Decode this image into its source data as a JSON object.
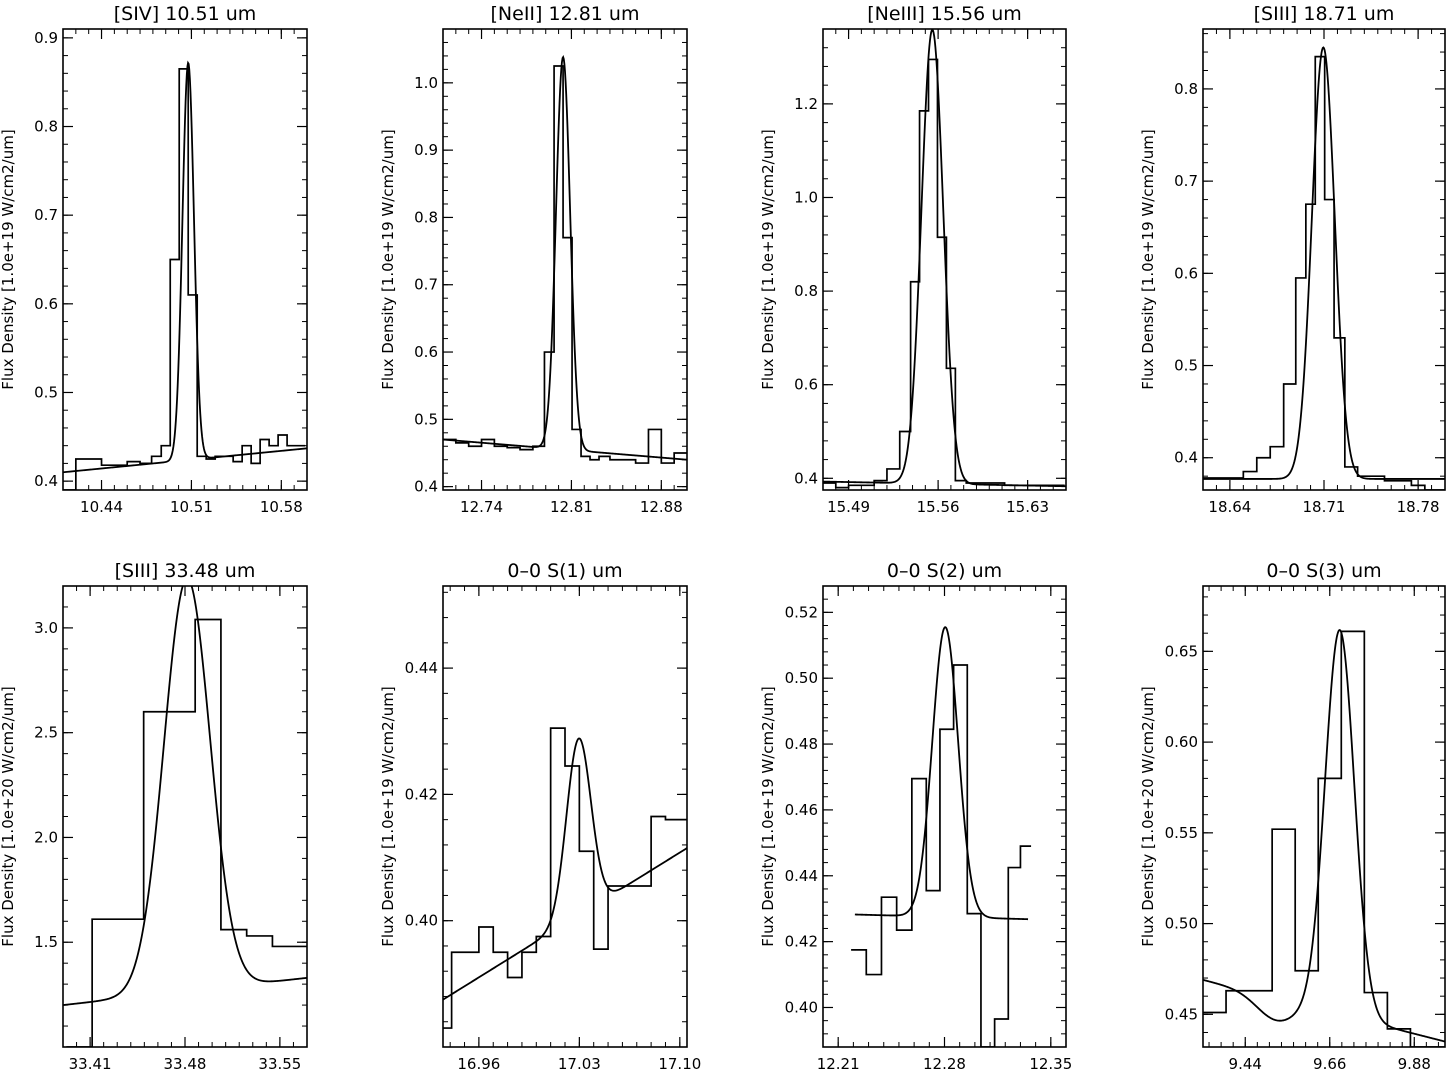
{
  "figure": {
    "description_free": true,
    "line_color": "#000000",
    "background": "#ffffff"
  },
  "chart_data": [
    {
      "type": "line",
      "title": "[SIV]   10.51  um",
      "ylabel": "Flux Density [1.0e+19 W/cm2/um]",
      "xlabel": "",
      "xlim": [
        10.41,
        10.6
      ],
      "ylim": [
        0.39,
        0.91
      ],
      "xticks": [
        10.44,
        10.51,
        10.58
      ],
      "xtick_labels": [
        "10.44",
        "10.51",
        "10.58"
      ],
      "yticks": [
        0.4,
        0.5,
        0.6,
        0.7,
        0.8,
        0.9
      ],
      "ytick_labels": [
        "0.4",
        "0.5",
        "0.6",
        "0.7",
        "0.8",
        "0.9"
      ],
      "series": [
        {
          "name": "observed",
          "kind": "step",
          "x": [
            10.415,
            10.425,
            10.435,
            10.445,
            10.455,
            10.465,
            10.475,
            10.483,
            10.49,
            10.497,
            10.504,
            10.511,
            10.518,
            10.525,
            10.532,
            10.539,
            10.546,
            10.553,
            10.56,
            10.567,
            10.574,
            10.581,
            10.588,
            10.595
          ],
          "values": [
            0.39,
            0.425,
            0.425,
            0.418,
            0.418,
            0.422,
            0.42,
            0.428,
            0.44,
            0.65,
            0.865,
            0.61,
            0.428,
            0.425,
            0.428,
            0.428,
            0.422,
            0.44,
            0.42,
            0.447,
            0.44,
            0.452,
            0.44,
            0.44
          ]
        },
        {
          "name": "fit",
          "kind": "gaussian",
          "center": 10.5075,
          "sigma": 0.0045,
          "amplitude": 0.448,
          "baseline_at_xmin": 0.41,
          "baseline_at_xmax": 0.437
        }
      ]
    },
    {
      "type": "line",
      "title": "[NeII]  12.81  um",
      "ylabel": "Flux Density [1.0e+19 W/cm2/um]",
      "xlabel": "",
      "xlim": [
        12.71,
        12.9
      ],
      "ylim": [
        0.395,
        1.08
      ],
      "xticks": [
        12.74,
        12.81,
        12.88
      ],
      "xtick_labels": [
        "12.74",
        "12.81",
        "12.88"
      ],
      "yticks": [
        0.4,
        0.5,
        0.6,
        0.7,
        0.8,
        0.9,
        1.0
      ],
      "ytick_labels": [
        "0.4",
        "0.5",
        "0.6",
        "0.7",
        "0.8",
        "0.9",
        "1.0"
      ],
      "series": [
        {
          "name": "observed",
          "kind": "step",
          "x": [
            12.715,
            12.725,
            12.735,
            12.745,
            12.755,
            12.765,
            12.775,
            12.785,
            12.793,
            12.8,
            12.807,
            12.814,
            12.821,
            12.828,
            12.835,
            12.845,
            12.855,
            12.865,
            12.875,
            12.885,
            12.895
          ],
          "values": [
            0.47,
            0.465,
            0.46,
            0.47,
            0.46,
            0.458,
            0.455,
            0.46,
            0.6,
            1.025,
            0.77,
            0.485,
            0.445,
            0.44,
            0.445,
            0.44,
            0.44,
            0.435,
            0.485,
            0.435,
            0.45
          ]
        },
        {
          "name": "fit",
          "kind": "gaussian",
          "center": 12.8035,
          "sigma": 0.0055,
          "amplitude": 0.583,
          "baseline_at_xmin": 0.47,
          "baseline_at_xmax": 0.44
        }
      ]
    },
    {
      "type": "line",
      "title": "[NeIII]  15.56  um",
      "ylabel": "Flux Density [1.0e+19 W/cm2/um]",
      "xlabel": "",
      "xlim": [
        15.47,
        15.66
      ],
      "ylim": [
        0.375,
        1.36
      ],
      "xticks": [
        15.49,
        15.56,
        15.63
      ],
      "xtick_labels": [
        "15.49",
        "15.56",
        "15.63"
      ],
      "yticks": [
        0.4,
        0.6,
        0.8,
        1.0,
        1.2
      ],
      "ytick_labels": [
        "0.4",
        "0.6",
        "0.8",
        "1.0",
        "1.2"
      ],
      "series": [
        {
          "name": "observed",
          "kind": "step",
          "x": [
            15.475,
            15.485,
            15.495,
            15.505,
            15.515,
            15.525,
            15.535,
            15.542,
            15.549,
            15.556,
            15.563,
            15.57,
            15.577,
            15.587,
            15.597,
            15.607,
            15.617,
            15.627,
            15.637,
            15.647,
            15.655
          ],
          "values": [
            0.39,
            0.38,
            0.385,
            0.385,
            0.395,
            0.42,
            0.5,
            0.82,
            1.185,
            1.295,
            0.915,
            0.635,
            0.395,
            0.39,
            0.39,
            0.39,
            0.385,
            0.385,
            0.385,
            0.385,
            0.385
          ]
        },
        {
          "name": "fit",
          "kind": "gaussian",
          "center": 15.5555,
          "sigma": 0.0085,
          "amplitude": 0.97,
          "baseline_at_xmin": 0.393,
          "baseline_at_xmax": 0.383
        }
      ]
    },
    {
      "type": "line",
      "title": "[SIII]   18.71  um",
      "ylabel": "Flux Density [1.0e+19 W/cm2/um]",
      "xlabel": "",
      "xlim": [
        18.62,
        18.8
      ],
      "ylim": [
        0.365,
        0.865
      ],
      "xticks": [
        18.64,
        18.71,
        18.78
      ],
      "xtick_labels": [
        "18.64",
        "18.71",
        "18.78"
      ],
      "yticks": [
        0.4,
        0.5,
        0.6,
        0.7,
        0.8
      ],
      "ytick_labels": [
        "0.4",
        "0.5",
        "0.6",
        "0.7",
        "0.8"
      ],
      "series": [
        {
          "name": "observed",
          "kind": "step",
          "x": [
            18.625,
            18.635,
            18.645,
            18.655,
            18.665,
            18.675,
            18.685,
            18.693,
            18.7,
            18.707,
            18.714,
            18.721,
            18.73,
            18.74,
            18.75,
            18.76,
            18.77,
            18.78,
            18.79,
            18.797
          ],
          "values": [
            0.378,
            0.378,
            0.378,
            0.385,
            0.4,
            0.412,
            0.48,
            0.595,
            0.675,
            0.835,
            0.68,
            0.53,
            0.39,
            0.38,
            0.38,
            0.375,
            0.375,
            0.37,
            0.365,
            0.365
          ]
        },
        {
          "name": "fit",
          "kind": "gaussian",
          "center": 18.7095,
          "sigma": 0.0085,
          "amplitude": 0.468,
          "baseline_at_xmin": 0.377,
          "baseline_at_xmax": 0.377
        }
      ]
    },
    {
      "type": "line",
      "title": "[SIII] 33.48   um",
      "ylabel": "Flux Density [1.0e+20 W/cm2/um]",
      "xlabel": "",
      "xlim": [
        33.39,
        33.57
      ],
      "ylim": [
        1.0,
        3.2
      ],
      "xticks": [
        33.41,
        33.48,
        33.55
      ],
      "xtick_labels": [
        "33.41",
        "33.48",
        "33.55"
      ],
      "yticks": [
        1.5,
        2.0,
        2.5,
        3.0
      ],
      "ytick_labels": [
        "1.5",
        "2.0",
        "2.5",
        "3.0"
      ],
      "series": [
        {
          "name": "observed",
          "kind": "step",
          "x": [
            33.402,
            33.421,
            33.44,
            33.459,
            33.478,
            33.497,
            33.516,
            33.535,
            33.554,
            33.566
          ],
          "values": [
            1.0,
            1.61,
            1.61,
            2.6,
            2.6,
            3.04,
            1.56,
            1.53,
            1.48,
            1.48
          ]
        },
        {
          "name": "fit",
          "kind": "gaussian",
          "center": 33.4815,
          "sigma": 0.017,
          "amplitude": 1.97,
          "baseline_at_xmin": 1.2,
          "baseline_at_xmax": 1.33
        }
      ]
    },
    {
      "type": "line",
      "title": "0–0 S(1)     um",
      "ylabel": "Flux Density [1.0e+19 W/cm2/um]",
      "xlabel": "",
      "xlim": [
        16.935,
        17.105
      ],
      "ylim": [
        0.38,
        0.453
      ],
      "xticks": [
        16.96,
        17.03,
        17.1
      ],
      "xtick_labels": [
        "16.96",
        "17.03",
        "17.10"
      ],
      "yticks": [
        0.4,
        0.42,
        0.44
      ],
      "ytick_labels": [
        "0.40",
        "0.42",
        "0.44"
      ],
      "series": [
        {
          "name": "observed",
          "kind": "step",
          "x": [
            16.937,
            16.945,
            16.955,
            16.965,
            16.975,
            16.985,
            16.995,
            17.005,
            17.015,
            17.025,
            17.035,
            17.045,
            17.055,
            17.065,
            17.075,
            17.085,
            17.095,
            17.103
          ],
          "values": [
            0.383,
            0.395,
            0.395,
            0.399,
            0.395,
            0.391,
            0.395,
            0.3975,
            0.4305,
            0.4245,
            0.411,
            0.3955,
            0.4055,
            0.4055,
            0.4055,
            0.4165,
            0.416,
            0.416
          ]
        },
        {
          "name": "fit",
          "kind": "gaussian",
          "center": 17.0295,
          "sigma": 0.0085,
          "amplitude": 0.028,
          "baseline_at_xmin": 0.3875,
          "baseline_at_xmax": 0.4115
        }
      ]
    },
    {
      "type": "line",
      "title": "0–0 S(2)    um",
      "ylabel": "Flux Density [1.0e+19 W/cm2/um]",
      "xlabel": "",
      "xlim": [
        12.2,
        12.36
      ],
      "ylim": [
        0.388,
        0.528
      ],
      "xticks": [
        12.21,
        12.28,
        12.35
      ],
      "xtick_labels": [
        "12.21",
        "12.28",
        "12.35"
      ],
      "yticks": [
        0.4,
        0.42,
        0.44,
        0.46,
        0.48,
        0.5,
        0.52
      ],
      "ytick_labels": [
        "0.40",
        "0.42",
        "0.44",
        "0.46",
        "0.48",
        "0.50",
        "0.52"
      ],
      "series": [
        {
          "name": "observed",
          "kind": "step",
          "x": [
            12.2235,
            12.2335,
            12.2435,
            12.2535,
            12.2635,
            12.2725,
            12.2815,
            12.2905,
            12.2995,
            12.3085,
            12.3175,
            12.3265,
            12.3335
          ],
          "values": [
            0.4175,
            0.41,
            0.4335,
            0.4235,
            0.4695,
            0.4355,
            0.4845,
            0.504,
            0.4285,
            0.388,
            0.3965,
            0.4425,
            0.449
          ]
        },
        {
          "name": "fit",
          "kind": "gaussian",
          "center": 12.2805,
          "sigma": 0.0085,
          "amplitude": 0.088,
          "baseline_at_xmin": 0.4285,
          "baseline_at_xmax": 0.4265,
          "x_start": 12.221,
          "x_end": 12.335
        }
      ]
    },
    {
      "type": "line",
      "title": "0–0 S(3)    um",
      "ylabel": "Flux Density [1.0e+20 W/cm2/um]",
      "xlabel": "",
      "xlim": [
        9.33,
        9.96
      ],
      "ylim": [
        0.432,
        0.686
      ],
      "xticks": [
        9.44,
        9.66,
        9.88
      ],
      "xtick_labels": [
        "9.44",
        "9.66",
        "9.88"
      ],
      "yticks": [
        0.45,
        0.5,
        0.55,
        0.6,
        0.65
      ],
      "ytick_labels": [
        "0.45",
        "0.50",
        "0.55",
        "0.60",
        "0.65"
      ],
      "series": [
        {
          "name": "observed",
          "kind": "step",
          "x": [
            9.36,
            9.42,
            9.48,
            9.54,
            9.6,
            9.66,
            9.72,
            9.78,
            9.84,
            9.9,
            9.95
          ],
          "values": [
            0.451,
            0.463,
            0.463,
            0.552,
            0.474,
            0.58,
            0.661,
            0.462,
            0.442,
            0.432,
            0.432
          ]
        },
        {
          "name": "fit",
          "kind": "gaussian",
          "center": 9.686,
          "sigma": 0.038,
          "amplitude": 0.212,
          "baseline_at_xmin": 0.469,
          "baseline_at_xmax": 0.435,
          "dip_center": 9.52,
          "dip_sigma": 0.05,
          "dip_depth": 0.012
        }
      ]
    }
  ]
}
